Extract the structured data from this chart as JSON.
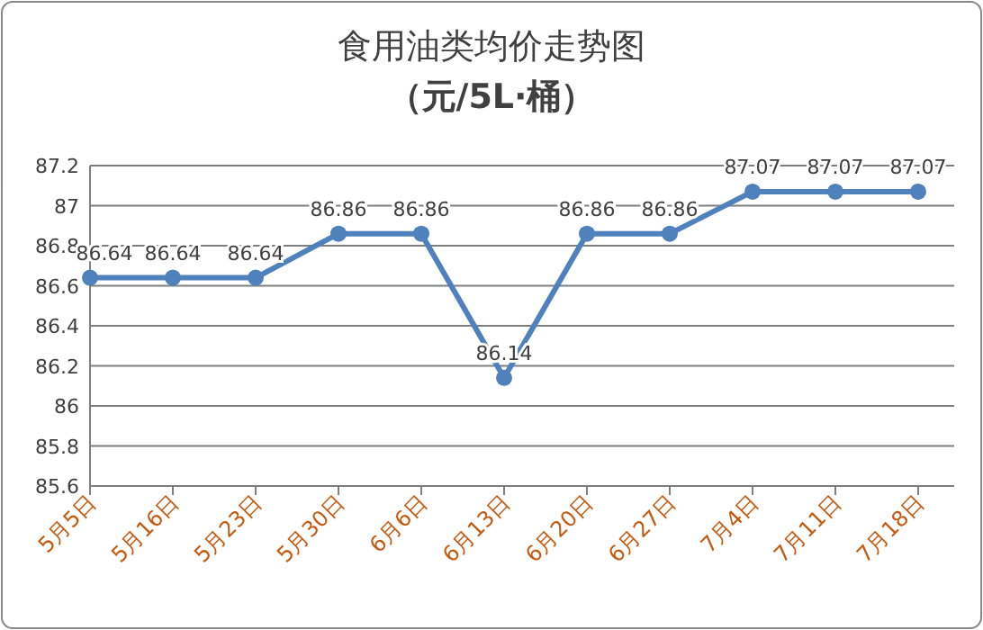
{
  "chart_data": {
    "type": "line",
    "title": "食用油类均价走势图",
    "subtitle": "（元/5L·桶）",
    "categories": [
      "5月5日",
      "5月16日",
      "5月23日",
      "5月30日",
      "6月6日",
      "6月13日",
      "6月20日",
      "6月27日",
      "7月4日",
      "7月11日",
      "7月18日"
    ],
    "series": [
      {
        "color": "#4f81bd",
        "values": [
          86.64,
          86.64,
          86.64,
          86.86,
          86.86,
          86.14,
          86.86,
          86.86,
          87.07,
          87.07,
          87.07
        ]
      }
    ],
    "ylim": [
      85.6,
      87.2
    ],
    "yticks": [
      85.6,
      85.8,
      86,
      86.2,
      86.4,
      86.6,
      86.8,
      87,
      87.2
    ],
    "grid": "y",
    "marker": "circle",
    "data_labels": true
  }
}
